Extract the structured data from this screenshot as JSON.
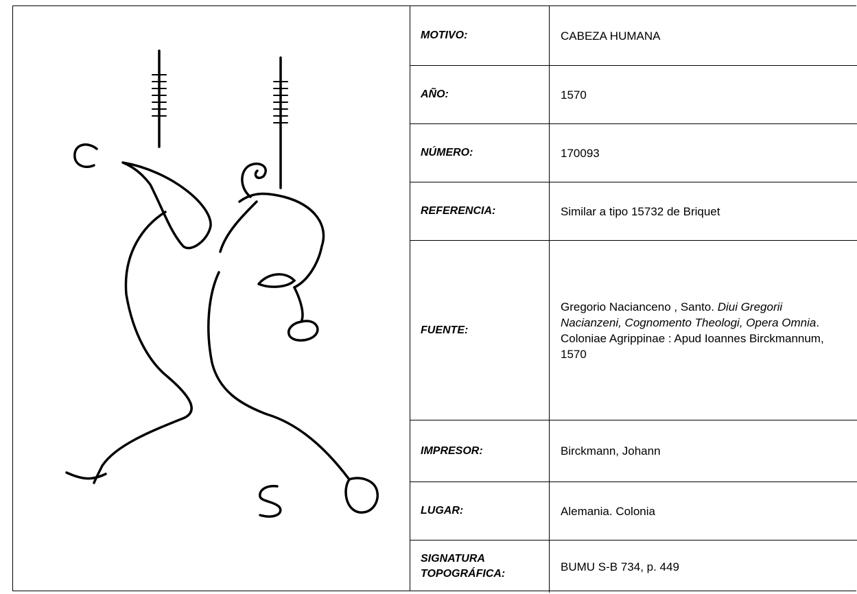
{
  "table": {
    "rows": [
      {
        "label": "MOTIVO:",
        "value": "CABEZA HUMANA"
      },
      {
        "label": "AÑO:",
        "value": "1570"
      },
      {
        "label": "NÚMERO:",
        "value": "170093"
      },
      {
        "label": "REFERENCIA:",
        "value": "Similar a tipo 15732 de Briquet"
      },
      {
        "label": "FUENTE:",
        "value": [
          {
            "text": "Gregorio Nacianceno , Santo. ",
            "italic": false
          },
          {
            "text": "Diui Gregorii Nacianzeni, Cognomento Theologi, Opera Omnia",
            "italic": true
          },
          {
            "text": ". Coloniae Agrippinae : Apud Ioannes Birckmannum, 1570",
            "italic": false
          }
        ]
      },
      {
        "label": "IMPRESOR:",
        "value": "Birckmann, Johann"
      },
      {
        "label": "LUGAR:",
        "value": "Alemania. Colonia"
      },
      {
        "label": "SIGNATURA TOPOGRÁFICA:",
        "value": "BUMU S-B 734, p. 449"
      }
    ]
  }
}
